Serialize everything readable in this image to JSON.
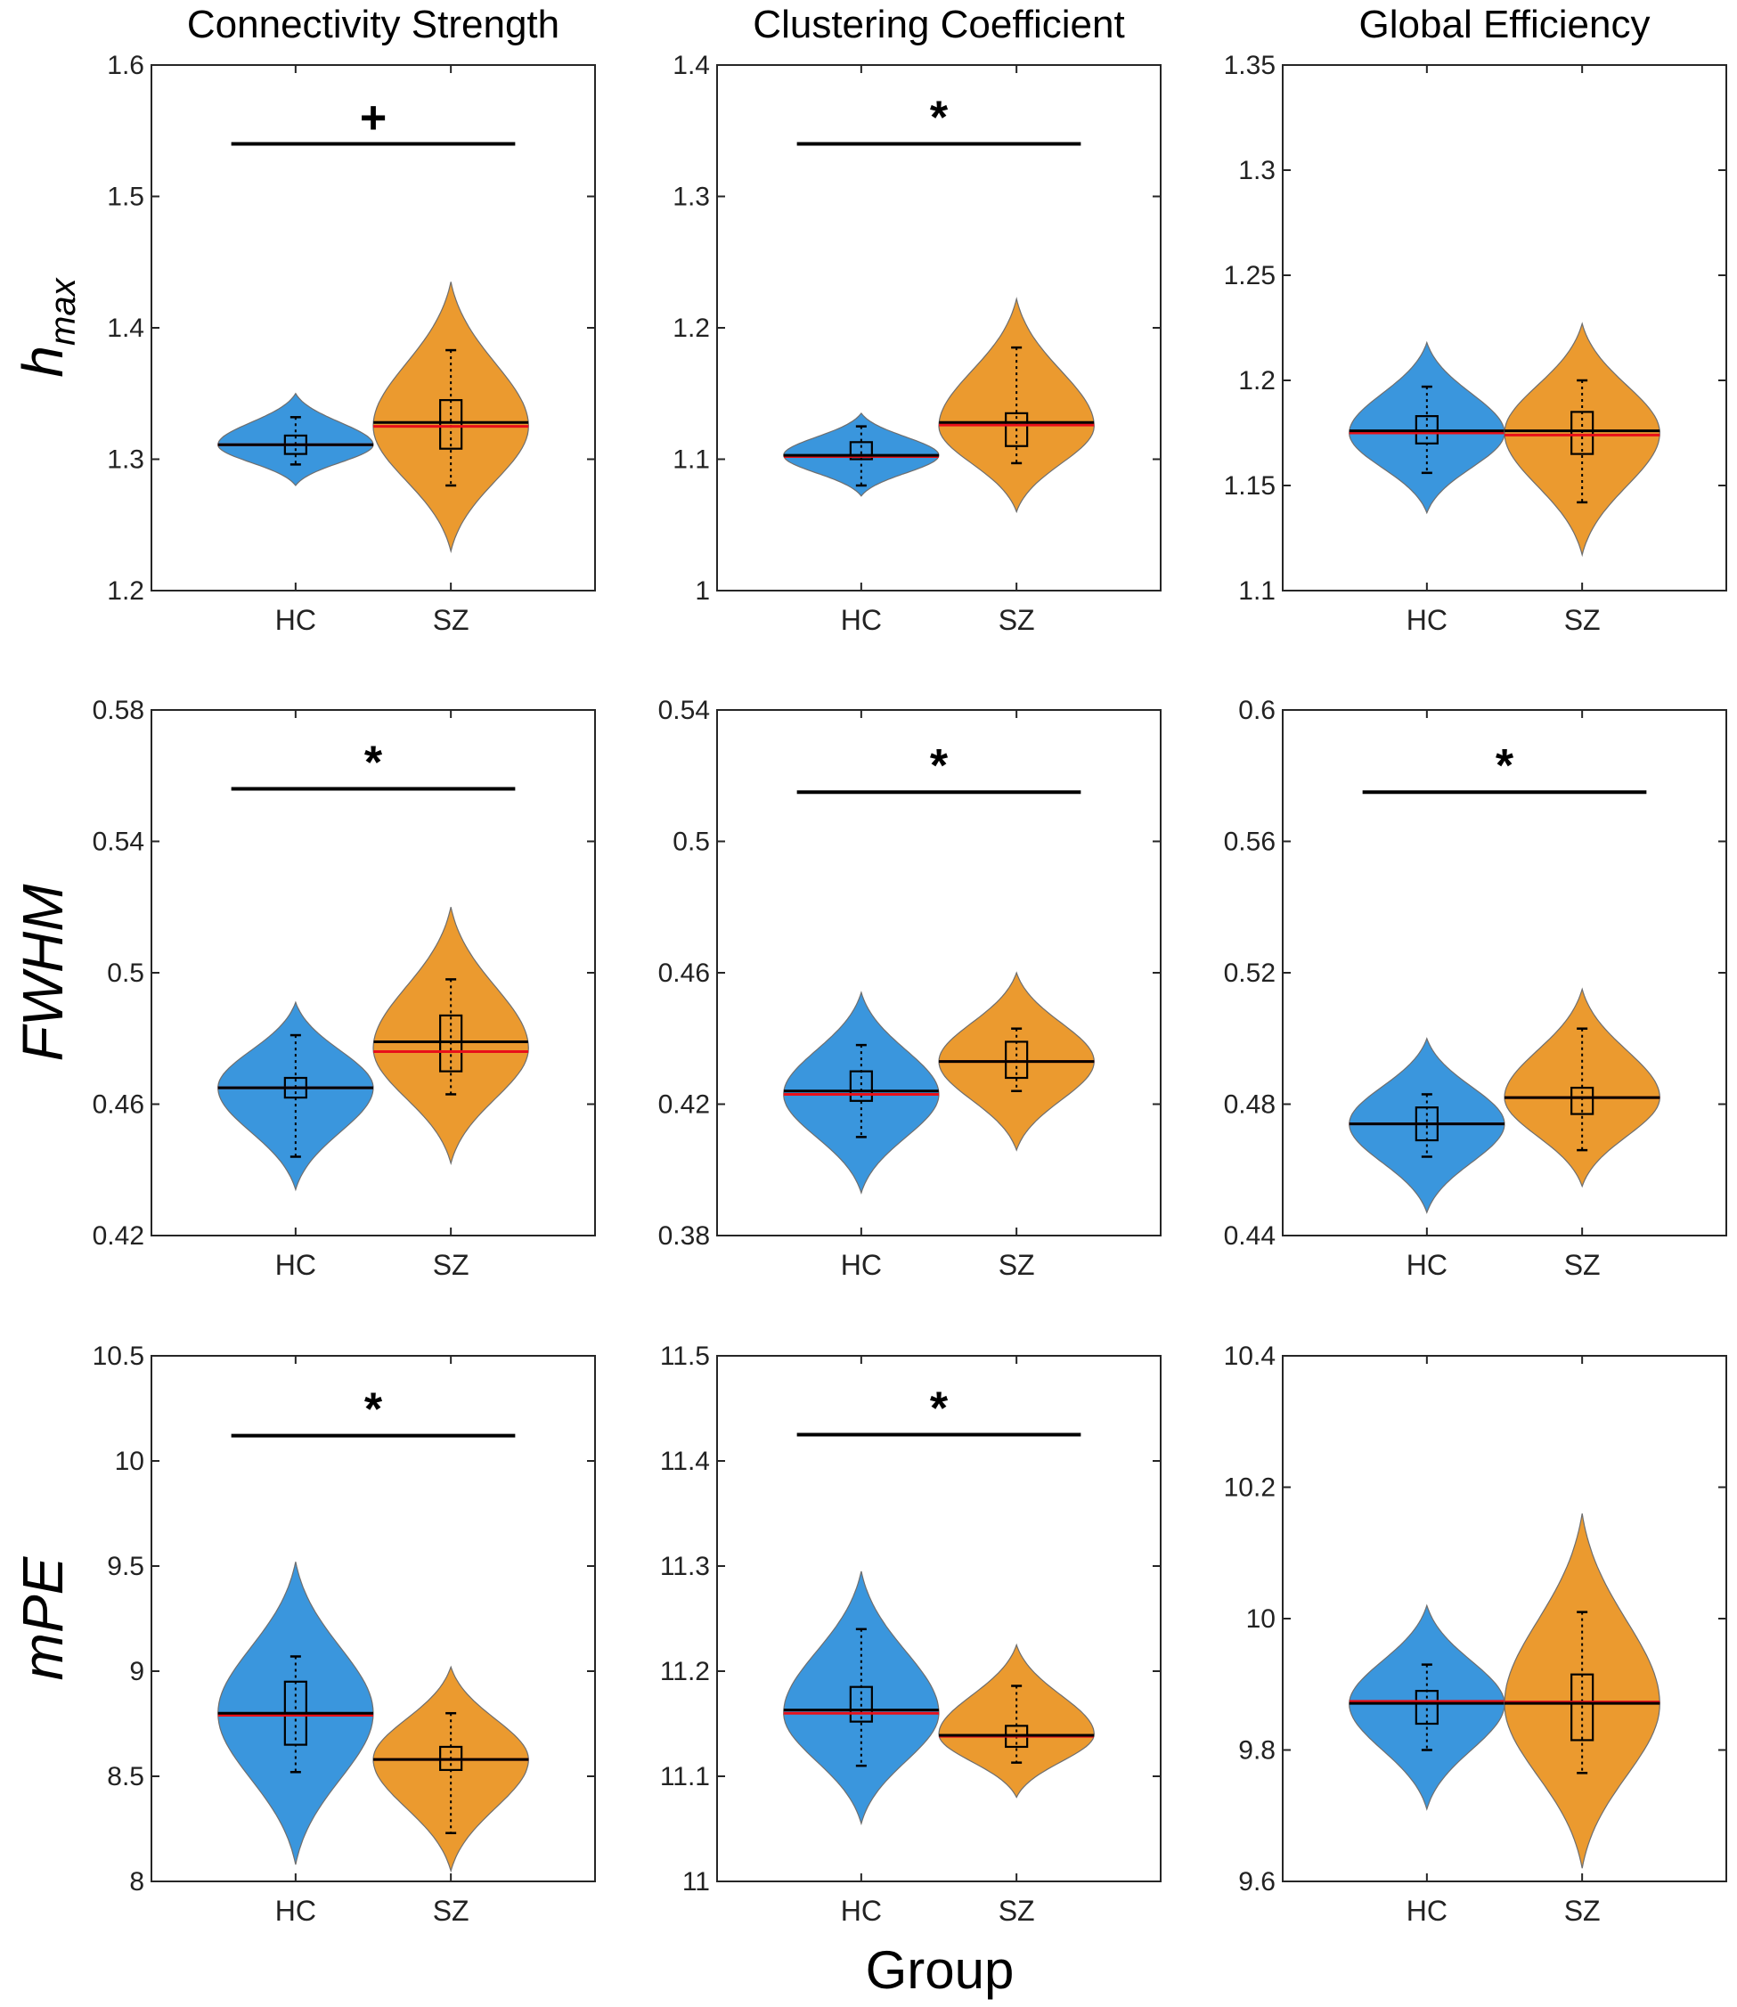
{
  "chart_data": {
    "type": "violin",
    "layout": "3x3 grid",
    "xlabel": "Group",
    "column_titles": [
      "Connectivity Strength",
      "Clustering Coefficient",
      "Global Efficiency"
    ],
    "row_labels": [
      {
        "main": "h",
        "sub": "max"
      },
      {
        "main": "FWHM",
        "sub": ""
      },
      {
        "main": "mPE",
        "sub": ""
      }
    ],
    "categories": [
      "HC",
      "SZ"
    ],
    "colors": {
      "HC": "#3a96dd",
      "SZ": "#eb9a2f",
      "mean": "#e8101a",
      "median": "#000000",
      "outline": "#6e6e6e"
    },
    "panels": [
      {
        "row": 0,
        "col": 0,
        "ylim": [
          1.2,
          1.6
        ],
        "yticks": [
          "1.2",
          "1.3",
          "1.4",
          "1.5",
          "1.6"
        ],
        "sig": "+",
        "sig_y": 1.54,
        "groups": [
          {
            "name": "HC",
            "ymin": 1.28,
            "ymax": 1.35,
            "peak": 1.311,
            "width": 0.44,
            "mean": 1.311,
            "median": 1.311,
            "q1": 1.304,
            "q3": 1.318,
            "wlo": 1.296,
            "whi": 1.332
          },
          {
            "name": "SZ",
            "ymin": 1.23,
            "ymax": 1.435,
            "peak": 1.325,
            "width": 0.44,
            "mean": 1.325,
            "median": 1.328,
            "q1": 1.308,
            "q3": 1.345,
            "wlo": 1.28,
            "whi": 1.383
          }
        ]
      },
      {
        "row": 0,
        "col": 1,
        "ylim": [
          1.0,
          1.4
        ],
        "yticks": [
          "1",
          "1.1",
          "1.2",
          "1.3",
          "1.4"
        ],
        "sig": "*",
        "sig_y": 1.34,
        "groups": [
          {
            "name": "HC",
            "ymin": 1.072,
            "ymax": 1.135,
            "peak": 1.103,
            "width": 0.44,
            "mean": 1.102,
            "median": 1.103,
            "q1": 1.1,
            "q3": 1.113,
            "wlo": 1.08,
            "whi": 1.125
          },
          {
            "name": "SZ",
            "ymin": 1.06,
            "ymax": 1.222,
            "peak": 1.125,
            "width": 0.44,
            "mean": 1.126,
            "median": 1.128,
            "q1": 1.11,
            "q3": 1.135,
            "wlo": 1.097,
            "whi": 1.185
          }
        ]
      },
      {
        "row": 0,
        "col": 2,
        "ylim": [
          1.1,
          1.35
        ],
        "yticks": [
          "1.1",
          "1.15",
          "1.2",
          "1.25",
          "1.3",
          "1.35"
        ],
        "sig": "",
        "sig_y": null,
        "groups": [
          {
            "name": "HC",
            "ymin": 1.137,
            "ymax": 1.218,
            "peak": 1.175,
            "width": 0.44,
            "mean": 1.175,
            "median": 1.176,
            "q1": 1.17,
            "q3": 1.183,
            "wlo": 1.156,
            "whi": 1.197
          },
          {
            "name": "SZ",
            "ymin": 1.117,
            "ymax": 1.227,
            "peak": 1.175,
            "width": 0.44,
            "mean": 1.174,
            "median": 1.176,
            "q1": 1.165,
            "q3": 1.185,
            "wlo": 1.142,
            "whi": 1.2
          }
        ]
      },
      {
        "row": 1,
        "col": 0,
        "ylim": [
          0.42,
          0.58
        ],
        "yticks": [
          "0.42",
          "0.46",
          "0.5",
          "0.54",
          "0.58"
        ],
        "sig": "*",
        "sig_y": 0.556,
        "groups": [
          {
            "name": "HC",
            "ymin": 0.434,
            "ymax": 0.491,
            "peak": 0.465,
            "width": 0.44,
            "mean": 0.465,
            "median": 0.465,
            "q1": 0.462,
            "q3": 0.468,
            "wlo": 0.444,
            "whi": 0.481
          },
          {
            "name": "SZ",
            "ymin": 0.442,
            "ymax": 0.52,
            "peak": 0.477,
            "width": 0.44,
            "mean": 0.476,
            "median": 0.479,
            "q1": 0.47,
            "q3": 0.487,
            "wlo": 0.463,
            "whi": 0.498
          }
        ]
      },
      {
        "row": 1,
        "col": 1,
        "ylim": [
          0.38,
          0.54
        ],
        "yticks": [
          "0.38",
          "0.42",
          "0.46",
          "0.5",
          "0.54"
        ],
        "sig": "*",
        "sig_y": 0.515,
        "groups": [
          {
            "name": "HC",
            "ymin": 0.393,
            "ymax": 0.454,
            "peak": 0.423,
            "width": 0.44,
            "mean": 0.423,
            "median": 0.424,
            "q1": 0.421,
            "q3": 0.43,
            "wlo": 0.41,
            "whi": 0.438
          },
          {
            "name": "SZ",
            "ymin": 0.406,
            "ymax": 0.46,
            "peak": 0.433,
            "width": 0.44,
            "mean": 0.433,
            "median": 0.433,
            "q1": 0.428,
            "q3": 0.439,
            "wlo": 0.424,
            "whi": 0.443
          }
        ]
      },
      {
        "row": 1,
        "col": 2,
        "ylim": [
          0.44,
          0.6
        ],
        "yticks": [
          "0.44",
          "0.48",
          "0.52",
          "0.56",
          "0.6"
        ],
        "sig": "*",
        "sig_y": 0.575,
        "groups": [
          {
            "name": "HC",
            "ymin": 0.447,
            "ymax": 0.5,
            "peak": 0.474,
            "width": 0.44,
            "mean": 0.474,
            "median": 0.474,
            "q1": 0.469,
            "q3": 0.479,
            "wlo": 0.464,
            "whi": 0.483
          },
          {
            "name": "SZ",
            "ymin": 0.455,
            "ymax": 0.515,
            "peak": 0.482,
            "width": 0.44,
            "mean": 0.482,
            "median": 0.482,
            "q1": 0.477,
            "q3": 0.485,
            "wlo": 0.466,
            "whi": 0.503
          }
        ]
      },
      {
        "row": 2,
        "col": 0,
        "ylim": [
          8,
          10.5
        ],
        "yticks": [
          "8",
          "8.5",
          "9",
          "9.5",
          "10",
          "10.5"
        ],
        "sig": "*",
        "sig_y": 10.12,
        "groups": [
          {
            "name": "HC",
            "ymin": 8.08,
            "ymax": 9.52,
            "peak": 8.8,
            "width": 0.44,
            "mean": 8.79,
            "median": 8.8,
            "q1": 8.65,
            "q3": 8.95,
            "wlo": 8.52,
            "whi": 9.07
          },
          {
            "name": "SZ",
            "ymin": 8.05,
            "ymax": 9.02,
            "peak": 8.58,
            "width": 0.44,
            "mean": 8.58,
            "median": 8.58,
            "q1": 8.53,
            "q3": 8.64,
            "wlo": 8.23,
            "whi": 8.8
          }
        ]
      },
      {
        "row": 2,
        "col": 1,
        "ylim": [
          11,
          11.5
        ],
        "yticks": [
          "11",
          "11.1",
          "11.2",
          "11.3",
          "11.4",
          "11.5"
        ],
        "sig": "*",
        "sig_y": 11.425,
        "groups": [
          {
            "name": "HC",
            "ymin": 11.055,
            "ymax": 11.295,
            "peak": 11.16,
            "width": 0.44,
            "mean": 11.16,
            "median": 11.163,
            "q1": 11.152,
            "q3": 11.185,
            "wlo": 11.11,
            "whi": 11.24
          },
          {
            "name": "SZ",
            "ymin": 11.08,
            "ymax": 11.225,
            "peak": 11.14,
            "width": 0.44,
            "mean": 11.138,
            "median": 11.139,
            "q1": 11.128,
            "q3": 11.148,
            "wlo": 11.113,
            "whi": 11.186
          }
        ]
      },
      {
        "row": 2,
        "col": 2,
        "ylim": [
          9.6,
          10.4
        ],
        "yticks": [
          "9.6",
          "9.8",
          "10",
          "10.2",
          "10.4"
        ],
        "sig": "",
        "sig_y": null,
        "groups": [
          {
            "name": "HC",
            "ymin": 9.71,
            "ymax": 10.02,
            "peak": 9.87,
            "width": 0.44,
            "mean": 9.874,
            "median": 9.871,
            "q1": 9.84,
            "q3": 9.89,
            "wlo": 9.8,
            "whi": 9.93
          },
          {
            "name": "SZ",
            "ymin": 9.62,
            "ymax": 10.16,
            "peak": 9.87,
            "width": 0.44,
            "mean": 9.873,
            "median": 9.871,
            "q1": 9.815,
            "q3": 9.915,
            "wlo": 9.765,
            "whi": 10.01
          }
        ]
      }
    ]
  }
}
